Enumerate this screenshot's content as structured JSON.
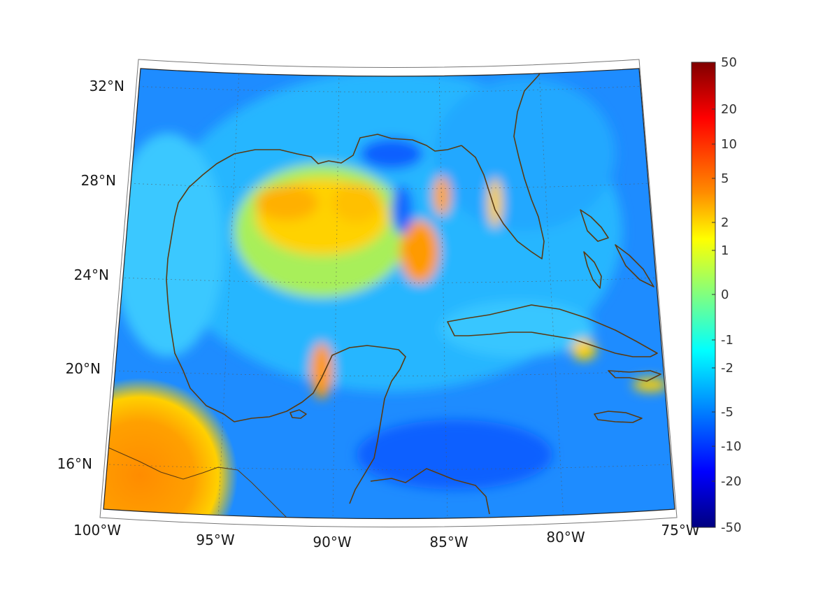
{
  "map": {
    "projection": "conic",
    "lon_range": [
      -100,
      -75
    ],
    "lat_range": [
      14,
      33
    ],
    "lon_tick_labels": [
      {
        "lon": -100,
        "label": "100°W"
      },
      {
        "lon": -95,
        "label": "95°W"
      },
      {
        "lon": -90,
        "label": "90°W"
      },
      {
        "lon": -85,
        "label": "85°W"
      },
      {
        "lon": -80,
        "label": "80°W"
      },
      {
        "lon": -75,
        "label": "75°W"
      }
    ],
    "lat_tick_labels": [
      {
        "lat": 32,
        "label": "32°N"
      },
      {
        "lat": 28,
        "label": "28°N"
      },
      {
        "lat": 24,
        "label": "24°N"
      },
      {
        "lat": 20,
        "label": "20°N"
      },
      {
        "lat": 16,
        "label": "16°N"
      }
    ],
    "gridlines": true,
    "coastline_color": "#5a3a12",
    "colormap": "jet"
  },
  "colorbar": {
    "ticks": [
      "50",
      "20",
      "10",
      "5",
      "2",
      "1",
      "0",
      "-1",
      "-2",
      "-5",
      "-10",
      "-20",
      "-50"
    ],
    "ticks_values": [
      50,
      20,
      10,
      5,
      2,
      1,
      0,
      -1,
      -2,
      -5,
      -10,
      -20,
      -50
    ]
  }
}
